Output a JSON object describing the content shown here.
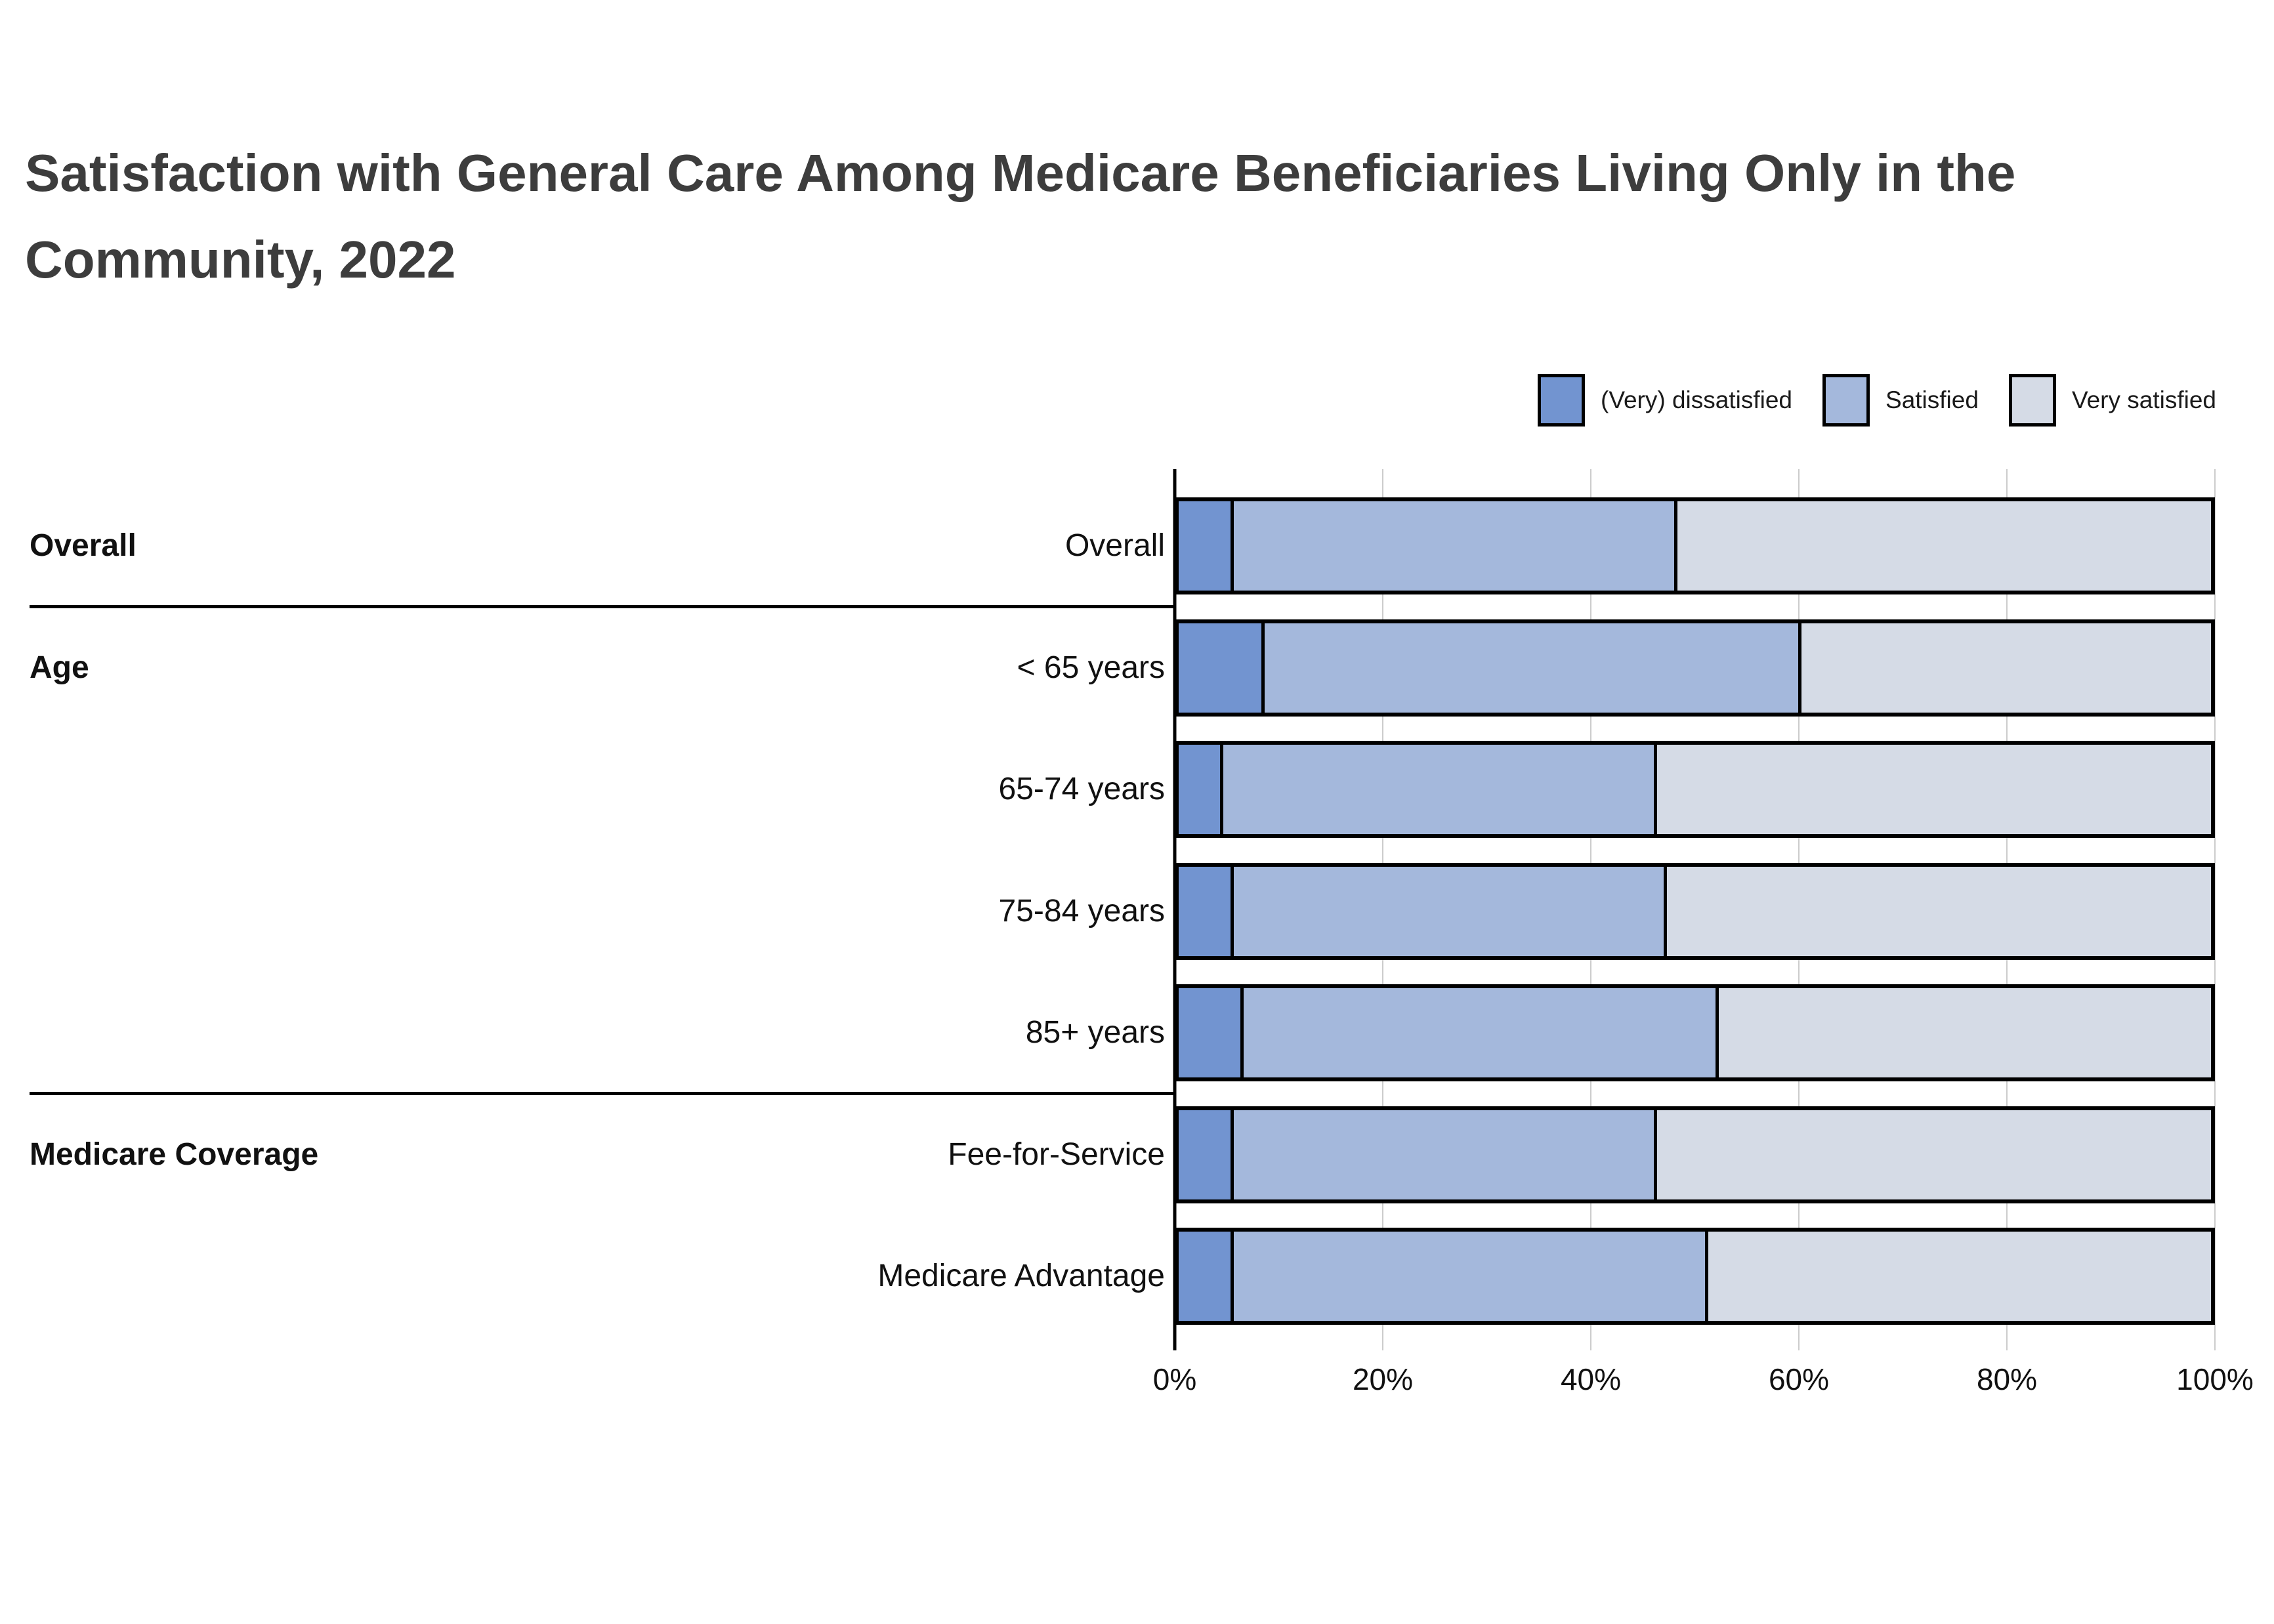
{
  "header": {
    "title_lines": [
      "Satisfaction with General Care Among Medicare Beneficiaries Living Only in the",
      "Community, 2022"
    ]
  },
  "chart_data": {
    "type": "bar",
    "subtype": "horizontal-stacked",
    "title": "Satisfaction with General Care Among Medicare Beneficiaries Living Only in the Community, 2022",
    "xlabel": "",
    "ylabel": "",
    "xlim": [
      0,
      100
    ],
    "x_tick_labels": [
      "0%",
      "20%",
      "40%",
      "60%",
      "80%",
      "100%"
    ],
    "x_tick_values": [
      0,
      20,
      40,
      60,
      80,
      100
    ],
    "grid": "vertical",
    "legend_position": "top-right",
    "series_names": [
      "(Very) dissatisfied",
      "Satisfied",
      "Very satisfied"
    ],
    "series_colors": [
      "#7294d0",
      "#a4b8dc",
      "#d5dbe6"
    ],
    "groups": [
      {
        "label": "Overall",
        "rows": [
          {
            "label": "Overall",
            "values": [
              5,
              43,
              52
            ]
          }
        ]
      },
      {
        "label": "Age",
        "rows": [
          {
            "label": "< 65 years",
            "values": [
              8,
              52,
              40
            ]
          },
          {
            "label": "65-74 years",
            "values": [
              4,
              42,
              54
            ]
          },
          {
            "label": "75-84 years",
            "values": [
              5,
              42,
              53
            ]
          },
          {
            "label": "85+ years",
            "values": [
              6,
              46,
              48
            ]
          }
        ]
      },
      {
        "label": "Medicare Coverage",
        "rows": [
          {
            "label": "Fee-for-Service",
            "values": [
              5,
              41,
              54
            ]
          },
          {
            "label": "Medicare Advantage",
            "values": [
              5,
              46,
              49
            ]
          }
        ]
      }
    ]
  }
}
